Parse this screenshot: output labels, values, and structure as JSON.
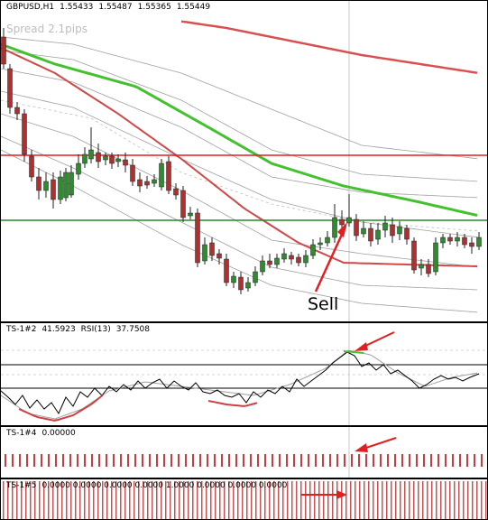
{
  "main_chart": {
    "symbol": "GBPUSD,H1",
    "open": "1.55433",
    "high": "1.55487",
    "low": "1.55365",
    "close": "1.55449",
    "spread_text": "Spread 2.1pips",
    "annotation": "Sell"
  },
  "indicators": {
    "rsi_pane": {
      "name": "TS-1#2",
      "value": "41.5923",
      "rsi_label": "RSI(13)",
      "rsi_value": "37.7508"
    },
    "pane3": {
      "name": "TS-1#4",
      "value": "0.00000"
    },
    "pane4": {
      "name": "TS-1#5",
      "values": "0.0000 0.0000 0.0000 0.0000 1.0000 0.0000 0.0000 0.0000"
    }
  },
  "colors": {
    "bull_candle": "#2e8b2e",
    "bear_candle": "#b03030",
    "resistance_line": "#e02020",
    "support_line": "#2a8a2a",
    "arrow": "#e02020",
    "envelope": "#a0a0a0"
  },
  "icons": [
    "red-arrow-icon"
  ]
}
